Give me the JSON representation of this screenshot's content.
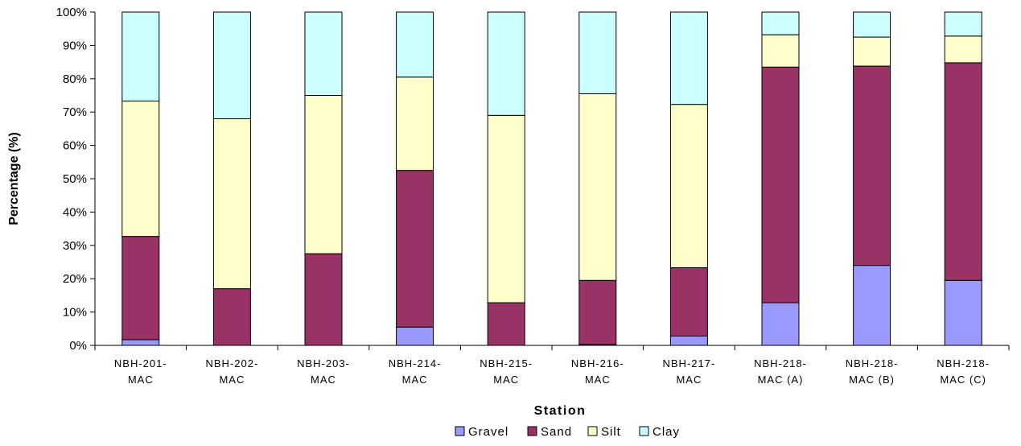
{
  "chart_data": {
    "type": "bar",
    "stacked": true,
    "title": "",
    "xlabel": "Station",
    "ylabel": "Percentage (%)",
    "ylim": [
      0,
      100
    ],
    "yticks": [
      "0%",
      "10%",
      "20%",
      "30%",
      "40%",
      "50%",
      "60%",
      "70%",
      "80%",
      "90%",
      "100%"
    ],
    "categories": [
      [
        "NBH-201-",
        "MAC"
      ],
      [
        "NBH-202-",
        "MAC"
      ],
      [
        "NBH-203-",
        "MAC"
      ],
      [
        "NBH-214-",
        "MAC"
      ],
      [
        "NBH-215-",
        "MAC"
      ],
      [
        "NBH-216-",
        "MAC"
      ],
      [
        "NBH-217-",
        "MAC"
      ],
      [
        "NBH-218-",
        "MAC (A)"
      ],
      [
        "NBH-218-",
        "MAC (B)"
      ],
      [
        "NBH-218-",
        "MAC (C)"
      ]
    ],
    "series": [
      {
        "name": "Gravel",
        "color": "#9999ff",
        "values": [
          1.7,
          0,
          0,
          5.5,
          0,
          0.3,
          2.8,
          12.8,
          24.0,
          19.5
        ]
      },
      {
        "name": "Sand",
        "color": "#993366",
        "values": [
          31.0,
          17.0,
          27.5,
          47.0,
          12.8,
          19.2,
          20.5,
          70.7,
          59.8,
          65.3
        ]
      },
      {
        "name": "Silt",
        "color": "#ffffcc",
        "values": [
          40.6,
          51.0,
          47.5,
          28.0,
          56.2,
          56.0,
          49.0,
          9.7,
          8.7,
          8.0
        ]
      },
      {
        "name": "Clay",
        "color": "#ccffff",
        "values": [
          26.7,
          32.0,
          25.0,
          19.5,
          31.0,
          24.5,
          27.7,
          6.8,
          7.5,
          7.2
        ]
      }
    ],
    "grid": false,
    "legend_position": "bottom"
  }
}
